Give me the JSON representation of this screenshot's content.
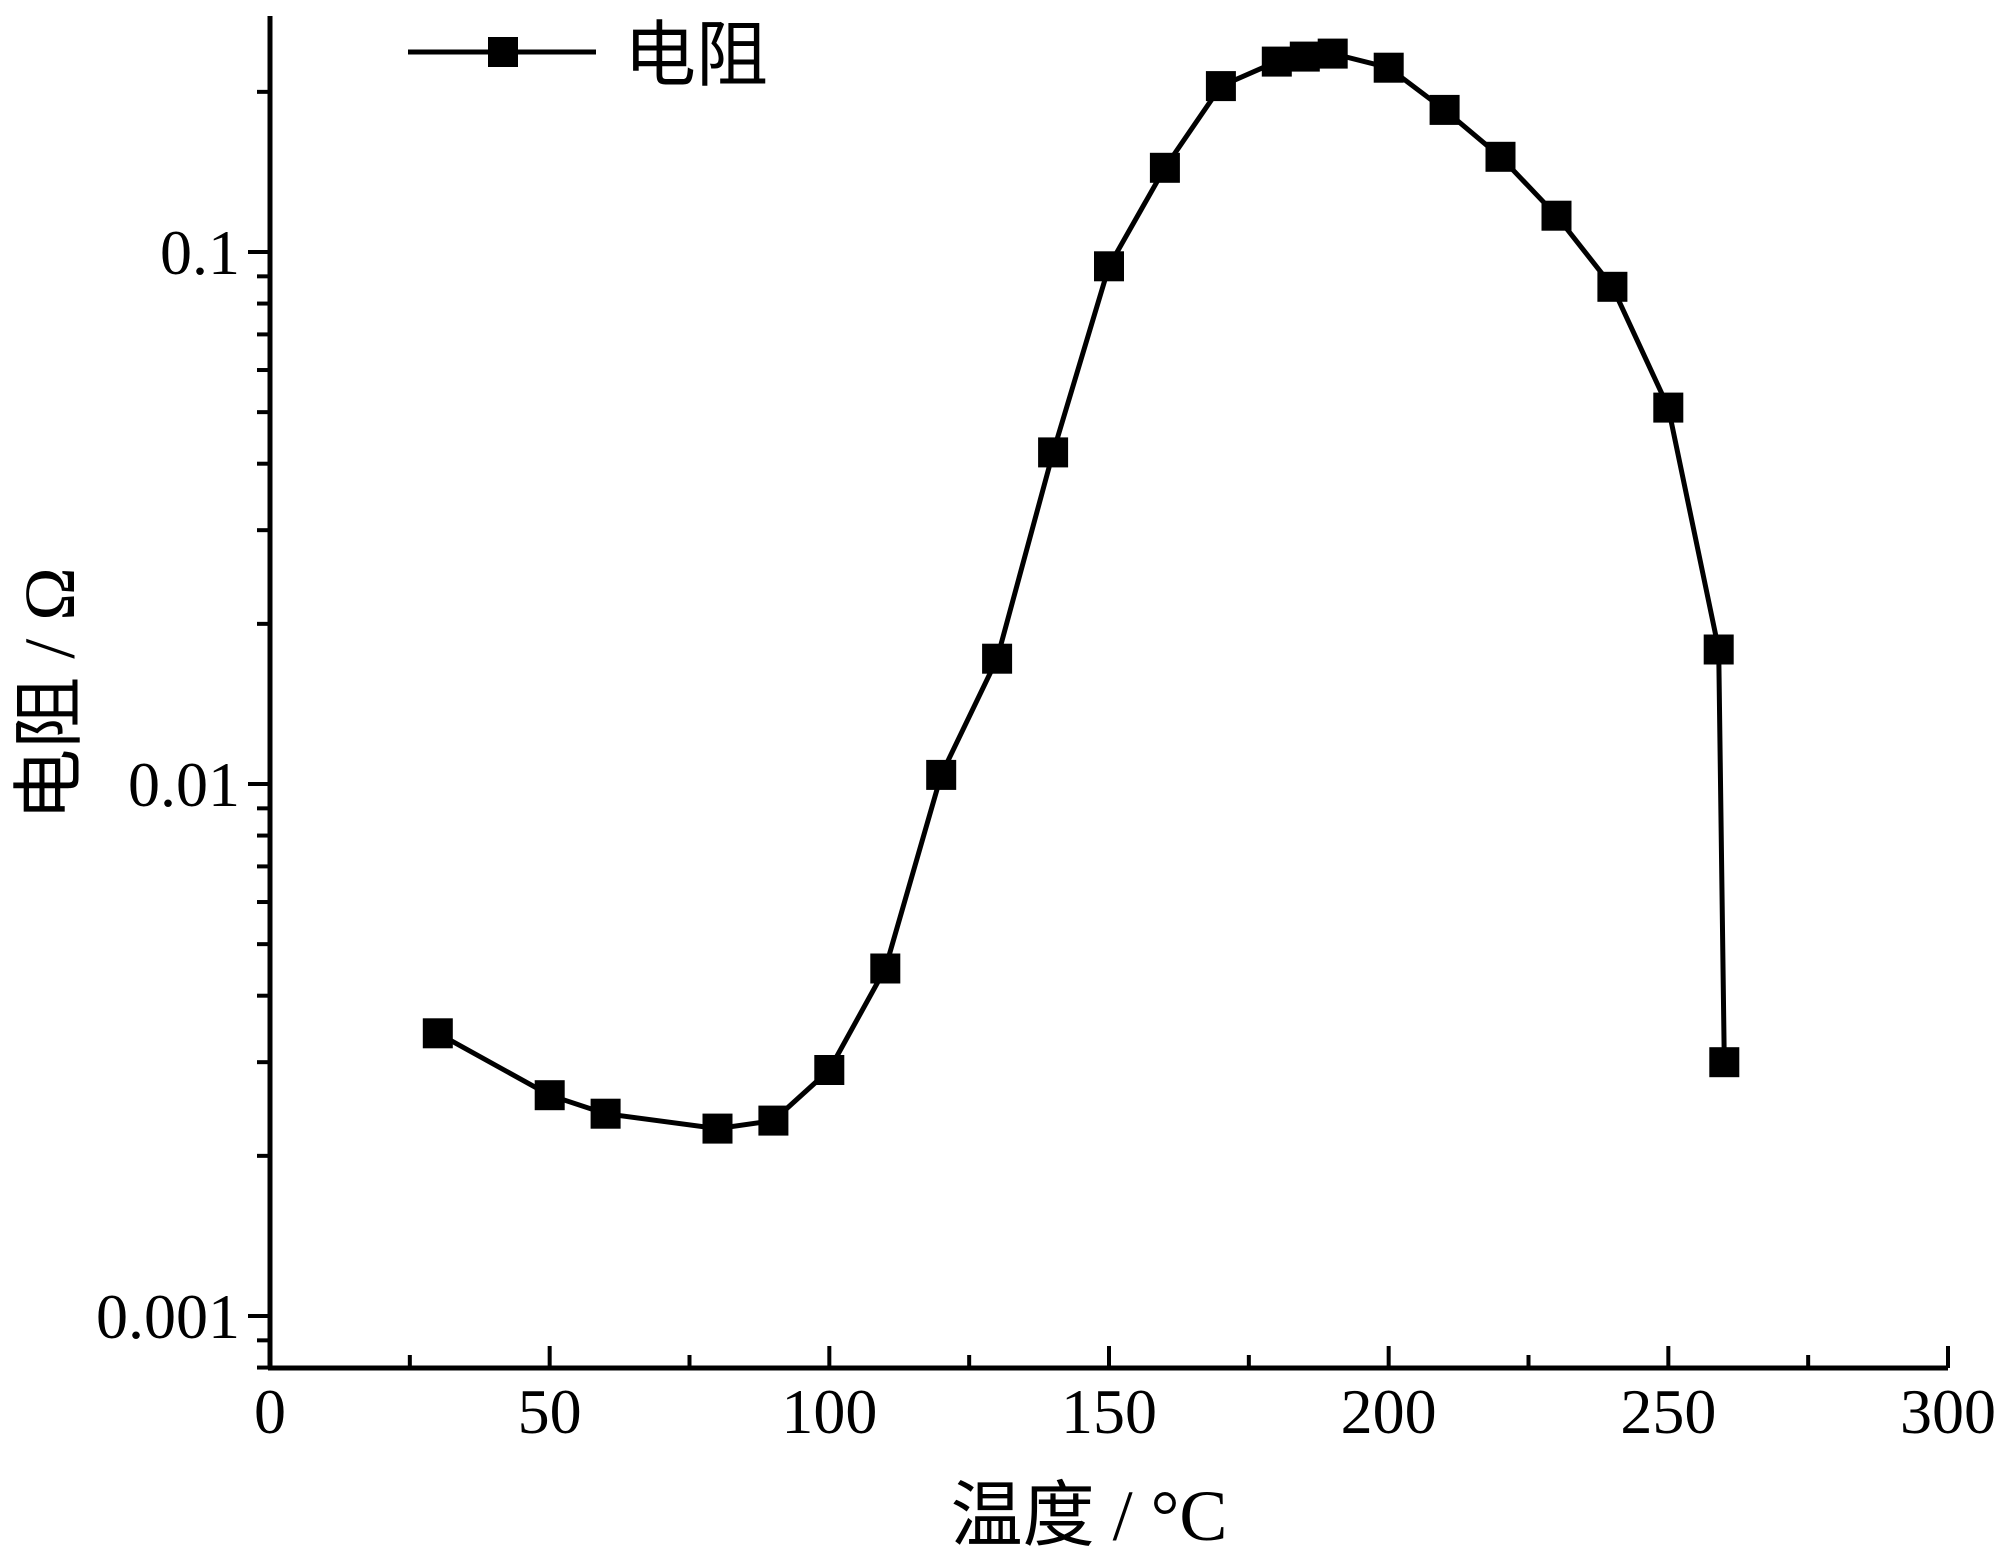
{
  "chart_data": {
    "type": "line",
    "title": "",
    "xlabel": "温度 / °C",
    "ylabel": "电阻 / Ω",
    "xlim": [
      0,
      300
    ],
    "ylim": [
      0.0008,
      0.25
    ],
    "yscale": "log",
    "grid": false,
    "legend_position": "top-left",
    "x_ticks": [
      "0",
      "50",
      "100",
      "150",
      "200",
      "250",
      "300"
    ],
    "y_ticks": [
      "0.001",
      "0.01",
      "0.1"
    ],
    "series": [
      {
        "name": "电阻",
        "marker": "square",
        "color": "#000000",
        "points": [
          {
            "x": 30,
            "y": 0.0034
          },
          {
            "x": 50,
            "y": 0.0026
          },
          {
            "x": 60,
            "y": 0.0024
          },
          {
            "x": 80,
            "y": 0.00225
          },
          {
            "x": 90,
            "y": 0.00233
          },
          {
            "x": 100,
            "y": 0.0029
          },
          {
            "x": 110,
            "y": 0.0045
          },
          {
            "x": 120,
            "y": 0.0104
          },
          {
            "x": 130,
            "y": 0.0172
          },
          {
            "x": 140,
            "y": 0.042
          },
          {
            "x": 150,
            "y": 0.094
          },
          {
            "x": 160,
            "y": 0.144
          },
          {
            "x": 170,
            "y": 0.205
          },
          {
            "x": 180,
            "y": 0.228
          },
          {
            "x": 185,
            "y": 0.233
          },
          {
            "x": 190,
            "y": 0.236
          },
          {
            "x": 200,
            "y": 0.222
          },
          {
            "x": 210,
            "y": 0.185
          },
          {
            "x": 220,
            "y": 0.151
          },
          {
            "x": 230,
            "y": 0.117
          },
          {
            "x": 240,
            "y": 0.086
          },
          {
            "x": 250,
            "y": 0.051
          },
          {
            "x": 259,
            "y": 0.0179
          },
          {
            "x": 260,
            "y": 0.003
          }
        ]
      }
    ]
  }
}
